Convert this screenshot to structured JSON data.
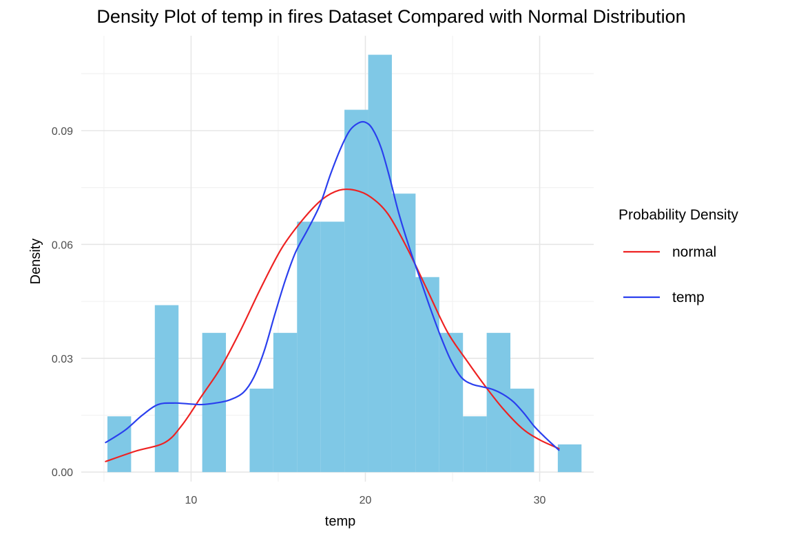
{
  "chart_data": {
    "type": "histogram_with_density",
    "title": "Density Plot of temp in fires Dataset Compared with Normal Distribution",
    "xlabel": "temp",
    "ylabel": "Density",
    "xlim": [
      3.7,
      33.1
    ],
    "ylim": [
      -0.0025,
      0.115
    ],
    "x_ticks": [
      10,
      20,
      30
    ],
    "y_ticks": [
      0.0,
      0.03,
      0.06,
      0.09
    ],
    "y_tick_labels": [
      "0.00",
      "0.03",
      "0.06",
      "0.09"
    ],
    "grid": true,
    "legend": {
      "title": "Probability Density",
      "placement": "right",
      "entries": [
        {
          "label": "normal",
          "color": "#ee2222"
        },
        {
          "label": "temp",
          "color": "#2a3fee"
        }
      ]
    },
    "histogram": {
      "color": "#7fc8e6",
      "bin_width": 1.36,
      "bins": [
        {
          "x0": 5.2,
          "x1": 6.56,
          "density": 0.0147
        },
        {
          "x0": 6.56,
          "x1": 7.92,
          "density": 0.0
        },
        {
          "x0": 7.92,
          "x1": 9.28,
          "density": 0.044
        },
        {
          "x0": 9.28,
          "x1": 10.64,
          "density": 0.0
        },
        {
          "x0": 10.64,
          "x1": 12.0,
          "density": 0.0367
        },
        {
          "x0": 12.0,
          "x1": 13.36,
          "density": 0.0
        },
        {
          "x0": 13.36,
          "x1": 14.72,
          "density": 0.022
        },
        {
          "x0": 14.72,
          "x1": 16.08,
          "density": 0.0367
        },
        {
          "x0": 16.08,
          "x1": 17.44,
          "density": 0.066
        },
        {
          "x0": 17.44,
          "x1": 18.8,
          "density": 0.066
        },
        {
          "x0": 18.8,
          "x1": 20.16,
          "density": 0.0955
        },
        {
          "x0": 20.16,
          "x1": 21.52,
          "density": 0.11
        },
        {
          "x0": 21.52,
          "x1": 22.88,
          "density": 0.0734
        },
        {
          "x0": 22.88,
          "x1": 24.24,
          "density": 0.0514
        },
        {
          "x0": 24.24,
          "x1": 25.6,
          "density": 0.0367
        },
        {
          "x0": 25.6,
          "x1": 26.96,
          "density": 0.0147
        },
        {
          "x0": 26.96,
          "x1": 28.32,
          "density": 0.0367
        },
        {
          "x0": 28.32,
          "x1": 29.68,
          "density": 0.022
        },
        {
          "x0": 29.68,
          "x1": 31.04,
          "density": 0.0
        },
        {
          "x0": 31.04,
          "x1": 32.4,
          "density": 0.0073
        }
      ]
    },
    "series": [
      {
        "name": "normal",
        "color": "#ee2222",
        "x": [
          5.1,
          6.8,
          8.5,
          9.5,
          10.6,
          11.7,
          12.8,
          14.0,
          15.2,
          16.4,
          17.5,
          18.5,
          19.4,
          20.3,
          21.3,
          22.4,
          23.5,
          24.7,
          25.8,
          26.9,
          27.9,
          29.0,
          30.0,
          31.1
        ],
        "y": [
          0.0028,
          0.0055,
          0.0078,
          0.0125,
          0.02,
          0.0275,
          0.037,
          0.0485,
          0.059,
          0.0665,
          0.0718,
          0.0743,
          0.0743,
          0.0725,
          0.068,
          0.059,
          0.0485,
          0.037,
          0.0295,
          0.0225,
          0.0167,
          0.0115,
          0.0085,
          0.0062
        ]
      },
      {
        "name": "temp",
        "color": "#2a3fee",
        "x": [
          5.1,
          6.2,
          7.2,
          8.1,
          9.0,
          9.8,
          10.6,
          11.4,
          12.2,
          13.0,
          13.6,
          14.2,
          14.8,
          15.4,
          16.0,
          16.7,
          17.4,
          18.0,
          18.6,
          19.1,
          19.6,
          20.0,
          20.4,
          20.9,
          21.4,
          21.9,
          22.5,
          23.1,
          23.7,
          24.3,
          24.9,
          25.5,
          26.1,
          26.7,
          27.3,
          27.9,
          28.5,
          29.1,
          29.7,
          30.3,
          31.1
        ],
        "y": [
          0.0078,
          0.011,
          0.015,
          0.0178,
          0.0182,
          0.018,
          0.0178,
          0.0182,
          0.019,
          0.021,
          0.025,
          0.032,
          0.0415,
          0.0505,
          0.058,
          0.064,
          0.0705,
          0.0785,
          0.0855,
          0.09,
          0.092,
          0.0922,
          0.0905,
          0.0855,
          0.0775,
          0.0685,
          0.0595,
          0.0515,
          0.0435,
          0.036,
          0.0295,
          0.025,
          0.0232,
          0.0225,
          0.0218,
          0.0205,
          0.0185,
          0.0155,
          0.012,
          0.0092,
          0.0058
        ]
      }
    ]
  }
}
